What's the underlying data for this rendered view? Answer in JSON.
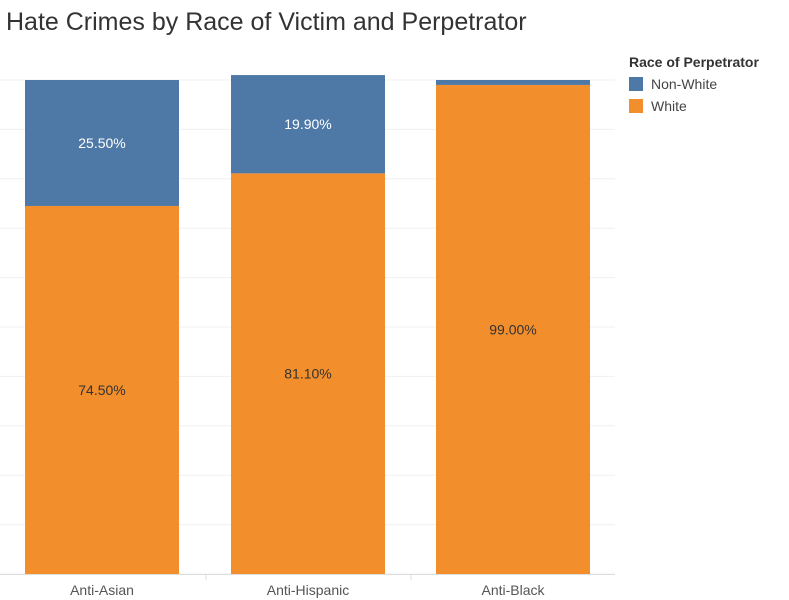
{
  "chart_data": {
    "type": "bar",
    "stacked": true,
    "title": "Hate Crimes by Race of Victim and Perpetrator",
    "categories": [
      "Anti-Asian",
      "Anti-Hispanic",
      "Anti-Black"
    ],
    "series": [
      {
        "name": "White",
        "color": "#f28e2b",
        "values": [
          74.5,
          81.1,
          99.0
        ],
        "labels": [
          "74.50%",
          "81.10%",
          "99.00%"
        ]
      },
      {
        "name": "Non-White",
        "color": "#4e79a7",
        "values": [
          25.5,
          19.9,
          1.0
        ],
        "labels": [
          "25.50%",
          "19.90%",
          ""
        ]
      }
    ],
    "ylim": [
      0,
      100
    ],
    "grid": true,
    "legend_title": "Race of Perpetrator",
    "legend_position": "top-right"
  }
}
